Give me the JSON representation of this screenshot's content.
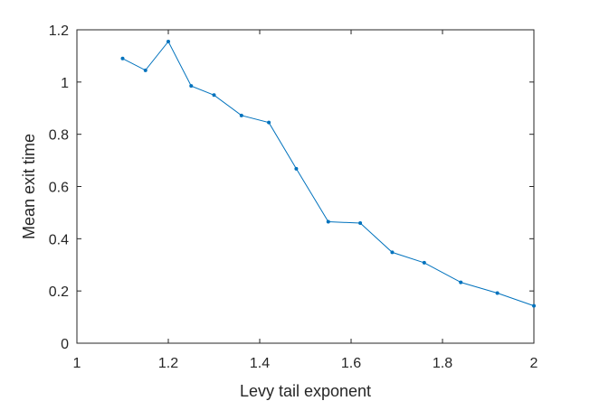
{
  "chart_data": {
    "type": "line",
    "title": "",
    "xlabel": "Levy tail exponent",
    "ylabel": "Mean exit time",
    "xlim": [
      1,
      2
    ],
    "ylim": [
      0,
      1.2
    ],
    "xticks": [
      1,
      1.2,
      1.4,
      1.6,
      1.8,
      2
    ],
    "xtick_labels": [
      "1",
      "1.2",
      "1.4",
      "1.6",
      "1.8",
      "2"
    ],
    "yticks": [
      0,
      0.2,
      0.4,
      0.6,
      0.8,
      1,
      1.2
    ],
    "ytick_labels": [
      "0",
      "0.2",
      "0.4",
      "0.6",
      "0.8",
      "1",
      "1.2"
    ],
    "grid": false,
    "legend": "none",
    "series": [
      {
        "color": "#0072BD",
        "marker": "point",
        "x": [
          1.1,
          1.15,
          1.2,
          1.25,
          1.3,
          1.36,
          1.42,
          1.48,
          1.55,
          1.62,
          1.69,
          1.76,
          1.84,
          1.92,
          2.0
        ],
        "y": [
          1.09,
          1.045,
          1.155,
          0.985,
          0.95,
          0.872,
          0.845,
          0.668,
          0.465,
          0.46,
          0.348,
          0.308,
          0.233,
          0.192,
          0.143
        ]
      }
    ]
  }
}
